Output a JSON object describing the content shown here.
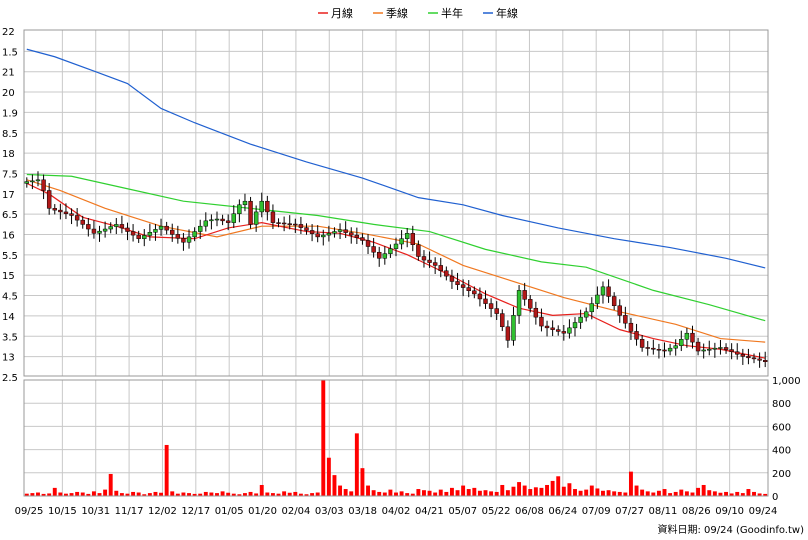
{
  "chart_data": [
    {
      "type": "candlestick",
      "legend": [
        {
          "label": "月線",
          "color": "#e8201c"
        },
        {
          "label": "季線",
          "color": "#f07820"
        },
        {
          "label": "半年",
          "color": "#30d030"
        },
        {
          "label": "年線",
          "color": "#2060d0"
        }
      ],
      "price_ticks": [
        "22",
        "1.5",
        "21",
        "20",
        "1.9",
        "8.5",
        "18",
        "7.5",
        "17",
        "6.5",
        "16",
        "5.5",
        "15",
        "4.5",
        "14",
        "3.5",
        "13",
        "2.5"
      ],
      "ylim": [
        12.5,
        22.2
      ],
      "grid": true,
      "candle_up_color": "#30c030",
      "candle_down_color": "#b01818",
      "ma_year": [
        [
          0,
          21.66
        ],
        [
          5,
          21.45
        ],
        [
          12,
          21.05
        ],
        [
          18,
          20.7
        ],
        [
          24,
          20.0
        ],
        [
          30,
          19.6
        ],
        [
          40,
          19.0
        ],
        [
          50,
          18.5
        ],
        [
          60,
          18.05
        ],
        [
          70,
          17.5
        ],
        [
          78,
          17.3
        ],
        [
          85,
          17.0
        ],
        [
          95,
          16.65
        ],
        [
          105,
          16.35
        ],
        [
          115,
          16.1
        ],
        [
          125,
          15.8
        ],
        [
          132,
          15.53
        ]
      ],
      "ma_half": [
        [
          0,
          18.15
        ],
        [
          8,
          18.1
        ],
        [
          18,
          17.75
        ],
        [
          28,
          17.4
        ],
        [
          40,
          17.2
        ],
        [
          52,
          17.0
        ],
        [
          62,
          16.75
        ],
        [
          72,
          16.55
        ],
        [
          82,
          16.05
        ],
        [
          92,
          15.7
        ],
        [
          100,
          15.55
        ],
        [
          112,
          14.9
        ],
        [
          122,
          14.5
        ],
        [
          132,
          14.05
        ]
      ],
      "ma_quarter": [
        [
          0,
          18.0
        ],
        [
          6,
          17.7
        ],
        [
          14,
          17.2
        ],
        [
          24,
          16.7
        ],
        [
          34,
          16.4
        ],
        [
          42,
          16.7
        ],
        [
          52,
          16.7
        ],
        [
          60,
          16.5
        ],
        [
          70,
          16.2
        ],
        [
          78,
          15.6
        ],
        [
          86,
          15.2
        ],
        [
          96,
          14.7
        ],
        [
          106,
          14.3
        ],
        [
          116,
          13.95
        ],
        [
          124,
          13.55
        ],
        [
          132,
          13.45
        ]
      ],
      "ma_month": [
        [
          0,
          17.9
        ],
        [
          4,
          17.6
        ],
        [
          10,
          16.95
        ],
        [
          16,
          16.7
        ],
        [
          22,
          16.4
        ],
        [
          30,
          16.35
        ],
        [
          36,
          16.65
        ],
        [
          42,
          16.8
        ],
        [
          50,
          16.55
        ],
        [
          56,
          16.5
        ],
        [
          62,
          16.25
        ],
        [
          68,
          15.9
        ],
        [
          76,
          15.3
        ],
        [
          82,
          14.8
        ],
        [
          88,
          14.4
        ],
        [
          94,
          14.2
        ],
        [
          100,
          14.25
        ],
        [
          106,
          13.8
        ],
        [
          112,
          13.55
        ],
        [
          118,
          13.35
        ],
        [
          124,
          13.25
        ],
        [
          132,
          13.0
        ]
      ],
      "anchors": [
        {
          "i": 0,
          "p": 17.95
        },
        {
          "i": 2,
          "p": 18.0
        },
        {
          "i": 4,
          "p": 17.2
        },
        {
          "i": 8,
          "p": 17.0
        },
        {
          "i": 12,
          "p": 16.5
        },
        {
          "i": 16,
          "p": 16.75
        },
        {
          "i": 20,
          "p": 16.35
        },
        {
          "i": 24,
          "p": 16.7
        },
        {
          "i": 28,
          "p": 16.25
        },
        {
          "i": 32,
          "p": 16.85
        },
        {
          "i": 36,
          "p": 16.9
        },
        {
          "i": 38,
          "p": 17.0
        },
        {
          "i": 40,
          "p": 16.75
        },
        {
          "i": 42,
          "p": 17.4
        },
        {
          "i": 44,
          "p": 16.8
        },
        {
          "i": 48,
          "p": 16.75
        },
        {
          "i": 52,
          "p": 16.4
        },
        {
          "i": 56,
          "p": 16.6
        },
        {
          "i": 60,
          "p": 16.3
        },
        {
          "i": 63,
          "p": 15.8
        },
        {
          "i": 66,
          "p": 16.2
        },
        {
          "i": 68,
          "p": 16.5
        },
        {
          "i": 70,
          "p": 15.85
        },
        {
          "i": 73,
          "p": 15.6
        },
        {
          "i": 76,
          "p": 15.15
        },
        {
          "i": 80,
          "p": 14.8
        },
        {
          "i": 84,
          "p": 14.25
        },
        {
          "i": 86,
          "p": 13.5
        },
        {
          "i": 88,
          "p": 14.9
        },
        {
          "i": 92,
          "p": 13.9
        },
        {
          "i": 96,
          "p": 13.7
        },
        {
          "i": 100,
          "p": 14.3
        },
        {
          "i": 103,
          "p": 15.0
        },
        {
          "i": 106,
          "p": 14.2
        },
        {
          "i": 110,
          "p": 13.3
        },
        {
          "i": 114,
          "p": 13.2
        },
        {
          "i": 116,
          "p": 13.35
        },
        {
          "i": 118,
          "p": 13.7
        },
        {
          "i": 120,
          "p": 13.2
        },
        {
          "i": 124,
          "p": 13.3
        },
        {
          "i": 128,
          "p": 13.05
        },
        {
          "i": 132,
          "p": 12.9
        }
      ],
      "closes": [
        17.95,
        17.97,
        18.0,
        17.7,
        17.2,
        17.15,
        17.1,
        17.05,
        17.0,
        16.87,
        16.75,
        16.62,
        16.5,
        16.56,
        16.62,
        16.69,
        16.75,
        16.65,
        16.55,
        16.45,
        16.35,
        16.44,
        16.53,
        16.61,
        16.7,
        16.59,
        16.47,
        16.36,
        16.25,
        16.4,
        16.55,
        16.7,
        16.85,
        16.88,
        16.9,
        16.85,
        16.8,
        17.05,
        17.3,
        17.4,
        16.75,
        17.1,
        17.4,
        17.1,
        16.8,
        16.79,
        16.77,
        16.76,
        16.75,
        16.66,
        16.58,
        16.49,
        16.4,
        16.45,
        16.5,
        16.55,
        16.6,
        16.52,
        16.45,
        16.38,
        16.3,
        16.13,
        15.97,
        15.8,
        15.93,
        16.07,
        16.2,
        16.35,
        16.5,
        16.18,
        15.85,
        15.75,
        15.68,
        15.6,
        15.45,
        15.3,
        15.15,
        15.06,
        14.98,
        14.89,
        14.8,
        14.66,
        14.53,
        14.39,
        14.25,
        13.88,
        13.5,
        14.2,
        14.9,
        14.65,
        14.4,
        14.15,
        13.9,
        13.85,
        13.8,
        13.75,
        13.7,
        13.85,
        14.0,
        14.15,
        14.3,
        14.53,
        14.77,
        15.0,
        14.73,
        14.47,
        14.2,
        13.98,
        13.75,
        13.53,
        13.3,
        13.28,
        13.25,
        13.23,
        13.2,
        13.28,
        13.35,
        13.53,
        13.7,
        13.45,
        13.2,
        13.23,
        13.25,
        13.28,
        13.3,
        13.24,
        13.18,
        13.11,
        13.05,
        13.01,
        12.98,
        12.94,
        12.9
      ],
      "vol_ticks": [
        "1,000",
        "800",
        "600",
        "400",
        "200",
        "0"
      ],
      "vol_max": 1000,
      "volume_color": "#ff0000",
      "volumes": [
        20,
        25,
        30,
        18,
        22,
        70,
        30,
        20,
        25,
        35,
        30,
        18,
        40,
        25,
        55,
        190,
        45,
        25,
        20,
        35,
        30,
        15,
        25,
        35,
        28,
        440,
        40,
        20,
        30,
        25,
        18,
        20,
        35,
        30,
        25,
        40,
        28,
        20,
        15,
        25,
        35,
        22,
        95,
        30,
        25,
        20,
        40,
        28,
        35,
        20,
        15,
        25,
        30,
        1000,
        330,
        180,
        90,
        60,
        40,
        540,
        240,
        90,
        50,
        35,
        30,
        55,
        30,
        40,
        25,
        20,
        60,
        50,
        45,
        30,
        55,
        35,
        70,
        50,
        90,
        60,
        70,
        45,
        50,
        40,
        35,
        95,
        50,
        80,
        120,
        90,
        60,
        75,
        70,
        95,
        130,
        170,
        80,
        110,
        60,
        45,
        55,
        90,
        65,
        45,
        50,
        40,
        35,
        30,
        210,
        90,
        55,
        40,
        30,
        45,
        60,
        25,
        35,
        55,
        40,
        30,
        70,
        95,
        50,
        40,
        28,
        35,
        22,
        35,
        25,
        60,
        35,
        22,
        18
      ],
      "x_ticks": [
        "09/25",
        "10/15",
        "10/31",
        "11/17",
        "12/02",
        "12/17",
        "01/05",
        "01/20",
        "02/04",
        "03/03",
        "03/18",
        "04/02",
        "04/21",
        "05/07",
        "05/22",
        "06/08",
        "06/24",
        "07/09",
        "07/27",
        "08/11",
        "08/26",
        "09/10",
        "09/24"
      ],
      "footer": "資料日期: 09/24  (Goodinfo.tw)"
    }
  ]
}
